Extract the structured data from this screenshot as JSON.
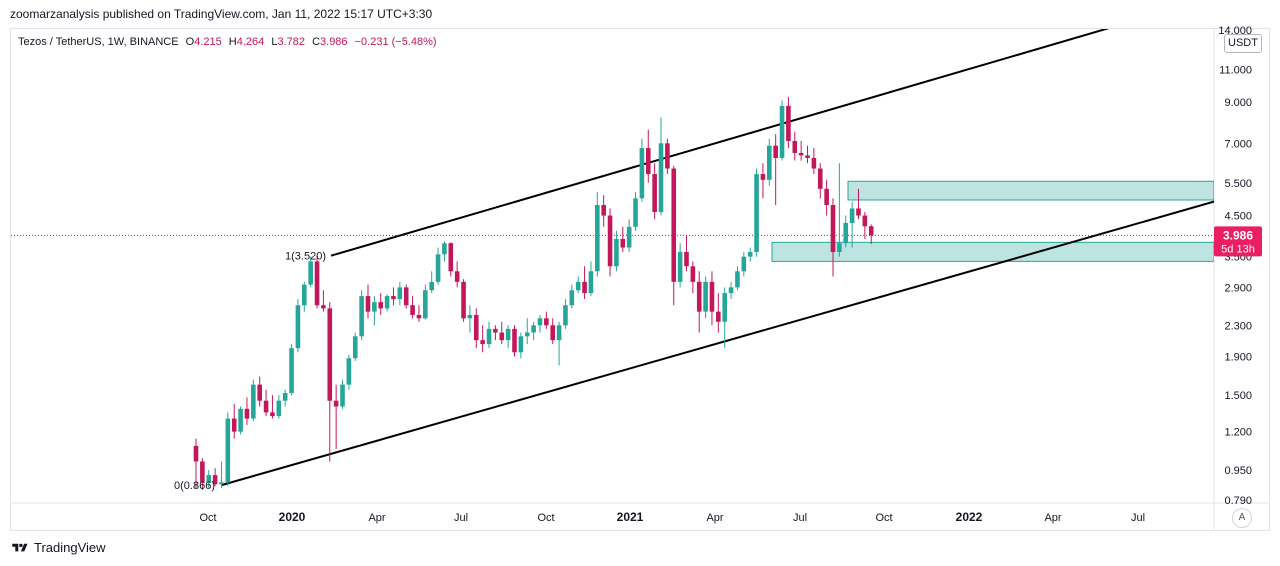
{
  "header": {
    "publish_text": "zoomarzanalysis published on TradingView.com, Jan 11, 2022 15:17 UTC+3:30",
    "symbol_text": "Tezos / TetherUS, 1W, BINANCE",
    "ohlc": {
      "o_label": "O",
      "o": "4.215",
      "h_label": "H",
      "h": "4.264",
      "l_label": "L",
      "l": "3.782",
      "c_label": "C",
      "c": "3.986",
      "change": "−0.231 (−5.48%)"
    },
    "currency": "USDT"
  },
  "footer": {
    "brand": "TradingView",
    "auto_button": "A"
  },
  "colors": {
    "up": "#26a69a",
    "down": "#c2185b",
    "zone_fill": "#b2dfdb",
    "zone_stroke": "#26a69a",
    "line": "#000000",
    "price_badge": "#e91e63"
  },
  "chart_data": {
    "type": "candlestick",
    "symbol": "Tezos / TetherUS",
    "interval": "1W",
    "exchange": "BINANCE",
    "y_scale": "log",
    "y_ticks": [
      "14.000",
      "11.000",
      "9.000",
      "7.000",
      "5.500",
      "4.500",
      "3.500",
      "2.900",
      "2.300",
      "1.900",
      "1.500",
      "1.200",
      "0.950",
      "0.790"
    ],
    "x_ticks": [
      {
        "label": "Oct",
        "bold": false
      },
      {
        "label": "2020",
        "bold": true
      },
      {
        "label": "Apr",
        "bold": false
      },
      {
        "label": "Jul",
        "bold": false
      },
      {
        "label": "Oct",
        "bold": false
      },
      {
        "label": "2021",
        "bold": true
      },
      {
        "label": "Apr",
        "bold": false
      },
      {
        "label": "Jul",
        "bold": false
      },
      {
        "label": "Oct",
        "bold": false
      },
      {
        "label": "2022",
        "bold": true
      },
      {
        "label": "Apr",
        "bold": false
      },
      {
        "label": "Jul",
        "bold": false
      }
    ],
    "last_price": "3.986",
    "countdown": "5d 13h",
    "annotations": [
      {
        "text": "1(3.520)",
        "price": 3.52
      },
      {
        "text": "0(0.866)",
        "price": 0.866
      }
    ],
    "channel_upper": [
      {
        "price": 3.52
      },
      {
        "price": 14.5
      }
    ],
    "channel_lower": [
      {
        "price": 0.866
      },
      {
        "price": 4.9
      }
    ],
    "zones": [
      {
        "top": 5.55,
        "bottom": 4.95
      },
      {
        "top": 3.82,
        "bottom": 3.4
      }
    ],
    "candles": [
      {
        "o": 1.1,
        "h": 1.15,
        "l": 0.85,
        "c": 1.0
      },
      {
        "o": 1.0,
        "h": 1.02,
        "l": 0.84,
        "c": 0.88
      },
      {
        "o": 0.88,
        "h": 0.95,
        "l": 0.85,
        "c": 0.92
      },
      {
        "o": 0.92,
        "h": 0.96,
        "l": 0.86,
        "c": 0.87
      },
      {
        "o": 0.87,
        "h": 1.0,
        "l": 0.85,
        "c": 0.88
      },
      {
        "o": 0.88,
        "h": 1.35,
        "l": 0.86,
        "c": 1.3
      },
      {
        "o": 1.3,
        "h": 1.42,
        "l": 1.15,
        "c": 1.2
      },
      {
        "o": 1.2,
        "h": 1.4,
        "l": 1.18,
        "c": 1.38
      },
      {
        "o": 1.38,
        "h": 1.48,
        "l": 1.25,
        "c": 1.3
      },
      {
        "o": 1.3,
        "h": 1.65,
        "l": 1.28,
        "c": 1.6
      },
      {
        "o": 1.6,
        "h": 1.68,
        "l": 1.4,
        "c": 1.45
      },
      {
        "o": 1.45,
        "h": 1.55,
        "l": 1.32,
        "c": 1.35
      },
      {
        "o": 1.35,
        "h": 1.5,
        "l": 1.3,
        "c": 1.32
      },
      {
        "o": 1.32,
        "h": 1.5,
        "l": 1.3,
        "c": 1.45
      },
      {
        "o": 1.45,
        "h": 1.55,
        "l": 1.4,
        "c": 1.52
      },
      {
        "o": 1.52,
        "h": 2.05,
        "l": 1.5,
        "c": 2.0
      },
      {
        "o": 2.0,
        "h": 2.7,
        "l": 1.95,
        "c": 2.6
      },
      {
        "o": 2.6,
        "h": 3.0,
        "l": 2.5,
        "c": 2.95
      },
      {
        "o": 2.95,
        "h": 3.5,
        "l": 2.9,
        "c": 3.4
      },
      {
        "o": 3.4,
        "h": 3.52,
        "l": 2.55,
        "c": 2.6
      },
      {
        "o": 2.6,
        "h": 2.85,
        "l": 2.5,
        "c": 2.55
      },
      {
        "o": 2.55,
        "h": 2.65,
        "l": 1.0,
        "c": 1.45
      },
      {
        "o": 1.45,
        "h": 1.6,
        "l": 1.08,
        "c": 1.4
      },
      {
        "o": 1.4,
        "h": 1.65,
        "l": 1.38,
        "c": 1.6
      },
      {
        "o": 1.6,
        "h": 1.92,
        "l": 1.55,
        "c": 1.88
      },
      {
        "o": 1.88,
        "h": 2.2,
        "l": 1.85,
        "c": 2.15
      },
      {
        "o": 2.15,
        "h": 2.85,
        "l": 2.1,
        "c": 2.75
      },
      {
        "o": 2.75,
        "h": 2.95,
        "l": 2.4,
        "c": 2.5
      },
      {
        "o": 2.5,
        "h": 2.75,
        "l": 2.3,
        "c": 2.65
      },
      {
        "o": 2.65,
        "h": 2.8,
        "l": 2.45,
        "c": 2.55
      },
      {
        "o": 2.55,
        "h": 2.78,
        "l": 2.5,
        "c": 2.75
      },
      {
        "o": 2.75,
        "h": 2.9,
        "l": 2.6,
        "c": 2.7
      },
      {
        "o": 2.7,
        "h": 3.0,
        "l": 2.6,
        "c": 2.9
      },
      {
        "o": 2.9,
        "h": 2.95,
        "l": 2.55,
        "c": 2.6
      },
      {
        "o": 2.6,
        "h": 2.75,
        "l": 2.4,
        "c": 2.45
      },
      {
        "o": 2.45,
        "h": 2.6,
        "l": 2.35,
        "c": 2.4
      },
      {
        "o": 2.4,
        "h": 2.95,
        "l": 2.38,
        "c": 2.85
      },
      {
        "o": 2.85,
        "h": 3.2,
        "l": 2.8,
        "c": 3.0
      },
      {
        "o": 3.0,
        "h": 3.7,
        "l": 2.95,
        "c": 3.55
      },
      {
        "o": 3.55,
        "h": 3.85,
        "l": 3.4,
        "c": 3.8
      },
      {
        "o": 3.8,
        "h": 3.82,
        "l": 3.1,
        "c": 3.2
      },
      {
        "o": 3.2,
        "h": 3.4,
        "l": 2.9,
        "c": 3.0
      },
      {
        "o": 3.0,
        "h": 3.05,
        "l": 2.35,
        "c": 2.4
      },
      {
        "o": 2.4,
        "h": 2.6,
        "l": 2.2,
        "c": 2.45
      },
      {
        "o": 2.45,
        "h": 2.55,
        "l": 2.0,
        "c": 2.1
      },
      {
        "o": 2.1,
        "h": 2.3,
        "l": 1.95,
        "c": 2.05
      },
      {
        "o": 2.05,
        "h": 2.35,
        "l": 2.0,
        "c": 2.25
      },
      {
        "o": 2.25,
        "h": 2.3,
        "l": 2.1,
        "c": 2.2
      },
      {
        "o": 2.2,
        "h": 2.35,
        "l": 2.05,
        "c": 2.1
      },
      {
        "o": 2.1,
        "h": 2.3,
        "l": 2.0,
        "c": 2.25
      },
      {
        "o": 2.25,
        "h": 2.3,
        "l": 1.9,
        "c": 1.95
      },
      {
        "o": 1.95,
        "h": 2.2,
        "l": 1.88,
        "c": 2.15
      },
      {
        "o": 2.15,
        "h": 2.4,
        "l": 2.05,
        "c": 2.2
      },
      {
        "o": 2.2,
        "h": 2.35,
        "l": 2.1,
        "c": 2.3
      },
      {
        "o": 2.3,
        "h": 2.45,
        "l": 2.2,
        "c": 2.4
      },
      {
        "o": 2.4,
        "h": 2.5,
        "l": 2.25,
        "c": 2.3
      },
      {
        "o": 2.3,
        "h": 2.4,
        "l": 2.05,
        "c": 2.1
      },
      {
        "o": 2.1,
        "h": 2.35,
        "l": 1.8,
        "c": 2.3
      },
      {
        "o": 2.3,
        "h": 2.7,
        "l": 2.25,
        "c": 2.6
      },
      {
        "o": 2.6,
        "h": 2.95,
        "l": 2.55,
        "c": 2.85
      },
      {
        "o": 2.85,
        "h": 3.1,
        "l": 2.8,
        "c": 3.0
      },
      {
        "o": 3.0,
        "h": 3.3,
        "l": 2.7,
        "c": 2.8
      },
      {
        "o": 2.8,
        "h": 3.4,
        "l": 2.75,
        "c": 3.2
      },
      {
        "o": 3.2,
        "h": 5.2,
        "l": 3.1,
        "c": 4.8
      },
      {
        "o": 4.8,
        "h": 5.1,
        "l": 4.2,
        "c": 4.5
      },
      {
        "o": 4.5,
        "h": 4.7,
        "l": 3.1,
        "c": 3.3
      },
      {
        "o": 3.3,
        "h": 4.1,
        "l": 3.2,
        "c": 3.9
      },
      {
        "o": 3.9,
        "h": 4.2,
        "l": 3.6,
        "c": 3.7
      },
      {
        "o": 3.7,
        "h": 4.4,
        "l": 3.6,
        "c": 4.2
      },
      {
        "o": 4.2,
        "h": 5.2,
        "l": 4.1,
        "c": 5.0
      },
      {
        "o": 5.0,
        "h": 7.2,
        "l": 4.9,
        "c": 6.8
      },
      {
        "o": 6.8,
        "h": 7.6,
        "l": 5.5,
        "c": 5.8
      },
      {
        "o": 5.8,
        "h": 6.2,
        "l": 4.4,
        "c": 4.6
      },
      {
        "o": 4.6,
        "h": 8.2,
        "l": 4.5,
        "c": 7.0
      },
      {
        "o": 7.0,
        "h": 7.2,
        "l": 5.8,
        "c": 6.0
      },
      {
        "o": 6.0,
        "h": 6.1,
        "l": 2.6,
        "c": 3.0
      },
      {
        "o": 3.0,
        "h": 3.8,
        "l": 2.9,
        "c": 3.6
      },
      {
        "o": 3.6,
        "h": 4.0,
        "l": 3.2,
        "c": 3.3
      },
      {
        "o": 3.3,
        "h": 3.4,
        "l": 2.8,
        "c": 3.0
      },
      {
        "o": 3.0,
        "h": 3.2,
        "l": 2.2,
        "c": 2.5
      },
      {
        "o": 2.5,
        "h": 3.1,
        "l": 2.4,
        "c": 3.0
      },
      {
        "o": 3.0,
        "h": 3.2,
        "l": 2.3,
        "c": 2.5
      },
      {
        "o": 2.5,
        "h": 2.8,
        "l": 2.2,
        "c": 2.35
      },
      {
        "o": 2.35,
        "h": 2.9,
        "l": 2.0,
        "c": 2.8
      },
      {
        "o": 2.8,
        "h": 3.0,
        "l": 2.7,
        "c": 2.9
      },
      {
        "o": 2.9,
        "h": 3.3,
        "l": 2.85,
        "c": 3.2
      },
      {
        "o": 3.2,
        "h": 3.6,
        "l": 3.1,
        "c": 3.5
      },
      {
        "o": 3.5,
        "h": 3.7,
        "l": 3.4,
        "c": 3.6
      },
      {
        "o": 3.6,
        "h": 6.0,
        "l": 3.5,
        "c": 5.8
      },
      {
        "o": 5.8,
        "h": 6.2,
        "l": 5.0,
        "c": 5.6
      },
      {
        "o": 5.6,
        "h": 7.2,
        "l": 5.4,
        "c": 6.9
      },
      {
        "o": 6.9,
        "h": 7.4,
        "l": 4.8,
        "c": 6.4
      },
      {
        "o": 6.4,
        "h": 9.1,
        "l": 6.3,
        "c": 8.8
      },
      {
        "o": 8.8,
        "h": 9.3,
        "l": 6.8,
        "c": 7.1
      },
      {
        "o": 7.1,
        "h": 7.5,
        "l": 6.3,
        "c": 6.6
      },
      {
        "o": 6.6,
        "h": 7.1,
        "l": 6.3,
        "c": 6.5
      },
      {
        "o": 6.5,
        "h": 6.9,
        "l": 6.2,
        "c": 6.4
      },
      {
        "o": 6.4,
        "h": 6.8,
        "l": 5.8,
        "c": 6.0
      },
      {
        "o": 6.0,
        "h": 6.2,
        "l": 5.0,
        "c": 5.3
      },
      {
        "o": 5.3,
        "h": 5.6,
        "l": 4.5,
        "c": 4.8
      },
      {
        "o": 4.8,
        "h": 5.0,
        "l": 3.1,
        "c": 3.6
      },
      {
        "o": 3.6,
        "h": 6.2,
        "l": 3.5,
        "c": 3.8
      },
      {
        "o": 3.8,
        "h": 4.5,
        "l": 3.7,
        "c": 4.3
      },
      {
        "o": 4.3,
        "h": 4.9,
        "l": 3.7,
        "c": 4.7
      },
      {
        "o": 4.7,
        "h": 5.3,
        "l": 4.4,
        "c": 4.5
      },
      {
        "o": 4.5,
        "h": 4.6,
        "l": 3.9,
        "c": 4.215
      },
      {
        "o": 4.215,
        "h": 4.264,
        "l": 3.782,
        "c": 3.986
      }
    ]
  }
}
